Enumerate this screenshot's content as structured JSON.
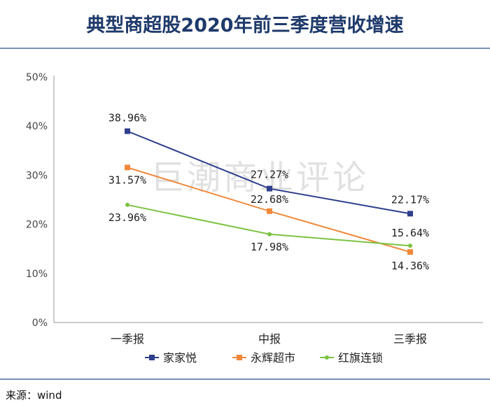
{
  "title": "典型商超股2020年前三季度营收增速",
  "source": "来源：wind",
  "watermark": "巨潮商业评论",
  "chart_data": {
    "type": "line",
    "title": "典型商超股2020年前三季度营收增速",
    "categories": [
      "一季报",
      "中报",
      "三季报"
    ],
    "ylim": [
      0,
      50
    ],
    "yticks": [
      "0%",
      "10%",
      "20%",
      "30%",
      "40%",
      "50%"
    ],
    "grid": false,
    "legend": "bottom",
    "series": [
      {
        "name": "家家悦",
        "color": "#2e3e8c",
        "marker": "square",
        "values": [
          38.96,
          27.27,
          22.17
        ],
        "labels": [
          "38.96%",
          "27.27%",
          "22.17%"
        ]
      },
      {
        "name": "永辉超市",
        "color": "#f0883a",
        "marker": "square",
        "values": [
          31.57,
          22.68,
          14.36
        ],
        "labels": [
          "31.57%",
          "22.68%",
          "14.36%"
        ]
      },
      {
        "name": "红旗连锁",
        "color": "#7cc242",
        "marker": "circle",
        "values": [
          23.96,
          17.98,
          15.64
        ],
        "labels": [
          "23.96%",
          "17.98%",
          "15.64%"
        ]
      }
    ]
  }
}
